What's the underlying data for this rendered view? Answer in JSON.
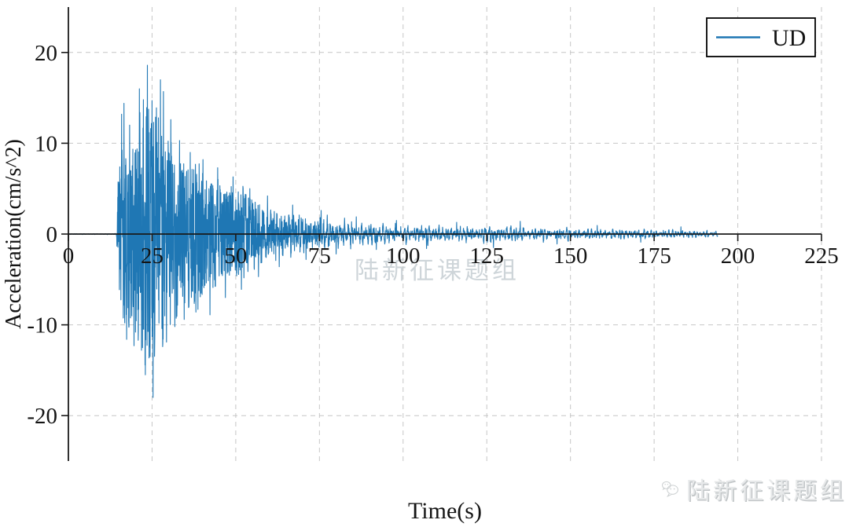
{
  "figure": {
    "background": "#ffffff"
  },
  "chart_data": {
    "type": "line",
    "title": "",
    "xlabel": "Time(s)",
    "ylabel": "Acceleration(cm/s^2)",
    "xlim": [
      0,
      225
    ],
    "ylim": [
      -25,
      25
    ],
    "x_ticks": [
      0,
      25,
      50,
      75,
      100,
      125,
      150,
      175,
      200,
      225
    ],
    "y_ticks": [
      20,
      10,
      0,
      -10,
      -20
    ],
    "grid": {
      "style": "dashed",
      "color": "#c6c6c6"
    },
    "axis_color": "#1a1a1a",
    "legend": {
      "position": "upper-right",
      "entries": [
        {
          "label": "UD",
          "color": "#1f77b4"
        }
      ]
    },
    "series": [
      {
        "name": "UD",
        "color": "#1f77b4",
        "signal": {
          "kind": "earthquake-acceleration-record",
          "units": "cm/s^2",
          "dt": 0.05,
          "t_onset": 14.4,
          "t_end": 194,
          "peak": {
            "t": 23.6,
            "value": 18.6
          },
          "trough": {
            "t": 25.3,
            "value": -18.0
          },
          "envelope": [
            [
              0,
              0.04
            ],
            [
              14.3,
              0.06
            ],
            [
              14.9,
              6.5
            ],
            [
              15.5,
              8.5
            ],
            [
              17,
              9.5
            ],
            [
              19,
              10
            ],
            [
              21,
              11
            ],
            [
              23.5,
              13.8
            ],
            [
              25,
              12.8
            ],
            [
              27,
              11.8
            ],
            [
              29,
              10
            ],
            [
              31,
              8.8
            ],
            [
              33,
              8.2
            ],
            [
              36,
              7.4
            ],
            [
              39,
              6.8
            ],
            [
              42,
              6.2
            ],
            [
              45,
              5.6
            ],
            [
              48,
              5.0
            ],
            [
              51,
              4.5
            ],
            [
              54,
              4.0
            ],
            [
              57,
              3.5
            ],
            [
              60,
              3.0
            ],
            [
              64,
              2.6
            ],
            [
              68,
              2.3
            ],
            [
              72,
              2.0
            ],
            [
              76,
              1.8
            ],
            [
              80,
              1.6
            ],
            [
              85,
              1.4
            ],
            [
              90,
              1.25
            ],
            [
              95,
              1.1
            ],
            [
              100,
              1.0
            ],
            [
              106,
              1.05
            ],
            [
              111,
              0.9
            ],
            [
              117,
              0.85
            ],
            [
              123,
              0.9
            ],
            [
              128,
              0.95
            ],
            [
              133,
              0.85
            ],
            [
              138,
              0.75
            ],
            [
              144,
              0.68
            ],
            [
              150,
              0.62
            ],
            [
              156,
              0.58
            ],
            [
              162,
              0.56
            ],
            [
              168,
              0.52
            ],
            [
              174,
              0.5
            ],
            [
              180,
              0.46
            ],
            [
              186,
              0.42
            ],
            [
              191,
              0.38
            ],
            [
              194,
              0.3
            ]
          ],
          "spikes": [
            [
              15.9,
              13.2
            ],
            [
              16.6,
              14.4
            ],
            [
              17.4,
              -11.6
            ],
            [
              18.3,
              12.0
            ],
            [
              19.6,
              -12.3
            ],
            [
              21.2,
              16.0
            ],
            [
              22.4,
              14.8
            ],
            [
              23.6,
              18.6
            ],
            [
              24.4,
              -13.5
            ],
            [
              25.3,
              -18.0
            ],
            [
              26.3,
              13.9
            ],
            [
              27.5,
              17.0
            ],
            [
              28.4,
              15.7
            ],
            [
              29.3,
              -11.9
            ],
            [
              30.6,
              12.6
            ],
            [
              31.8,
              -10.2
            ],
            [
              33.2,
              10.3
            ],
            [
              34.6,
              -9.4
            ],
            [
              36.4,
              9.0
            ],
            [
              38.1,
              -8.6
            ],
            [
              40.2,
              8.2
            ],
            [
              42.3,
              -8.9
            ],
            [
              44.6,
              7.3
            ],
            [
              46.9,
              -7.0
            ],
            [
              49.2,
              6.3
            ],
            [
              51.7,
              -6.1
            ],
            [
              54.2,
              5.0
            ],
            [
              56.8,
              -4.7
            ],
            [
              59.5,
              4.2
            ],
            [
              63.0,
              -3.6
            ],
            [
              67.0,
              3.2
            ],
            [
              71.0,
              -2.8
            ],
            [
              75.5,
              2.6
            ],
            [
              80.0,
              -2.2
            ],
            [
              86.0,
              1.9
            ],
            [
              92.0,
              -1.7
            ],
            [
              98.0,
              1.5
            ],
            [
              107.0,
              -1.6
            ],
            [
              116.0,
              1.3
            ],
            [
              127.0,
              -1.5
            ],
            [
              135.0,
              1.4
            ],
            [
              146.0,
              -1.1
            ],
            [
              158.0,
              0.95
            ],
            [
              171.0,
              -0.9
            ],
            [
              183.0,
              0.8
            ]
          ],
          "seed": 42
        }
      }
    ]
  },
  "watermarks": {
    "center": {
      "text": "陆新征课题组",
      "color": "#c6ced3"
    },
    "footer": {
      "text": "陆新征课题组",
      "icon": "wechat-chat-bubbles",
      "color": "#d8dbdc"
    }
  }
}
